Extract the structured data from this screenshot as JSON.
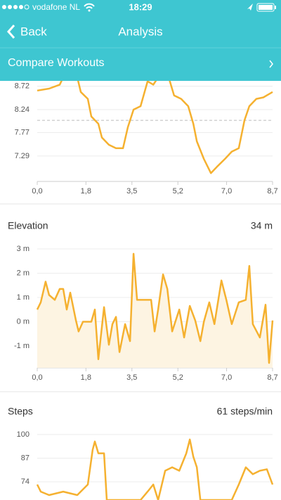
{
  "status_bar": {
    "carrier": "vodafone NL",
    "time": "18:29"
  },
  "nav": {
    "back": "Back",
    "title": "Analysis",
    "section": "Compare Workouts"
  },
  "chart_data": [
    {
      "type": "line",
      "color": "#f5b130",
      "grid": true,
      "x": [
        0,
        0.44,
        0.83,
        0.96,
        1.48,
        1.61,
        1.87,
        2.0,
        2.26,
        2.39,
        2.65,
        2.91,
        3.17,
        3.35,
        3.56,
        3.82,
        4.08,
        4.29,
        4.47,
        4.86,
        5.06,
        5.32,
        5.58,
        5.77,
        5.9,
        6.16,
        6.42,
        6.68,
        6.94,
        7.19,
        7.45,
        7.66,
        7.84,
        8.1,
        8.36,
        8.7
      ],
      "values": [
        8.63,
        8.67,
        8.75,
        8.9,
        8.9,
        8.6,
        8.46,
        8.1,
        7.95,
        7.67,
        7.52,
        7.45,
        7.45,
        7.88,
        8.24,
        8.31,
        8.82,
        8.75,
        8.9,
        8.9,
        8.53,
        8.46,
        8.31,
        7.95,
        7.59,
        7.23,
        6.94,
        7.09,
        7.23,
        7.38,
        7.45,
        8.02,
        8.31,
        8.46,
        8.49,
        8.6
      ],
      "reference_line": 8.02,
      "xlim": [
        0,
        8.7
      ],
      "ylim": [
        6.77,
        8.9
      ],
      "xticks": [
        {
          "value": 0,
          "label": "0,0"
        },
        {
          "value": 1.8,
          "label": "1,8"
        },
        {
          "value": 3.5,
          "label": "3,5"
        },
        {
          "value": 5.2,
          "label": "5,2"
        },
        {
          "value": 7.0,
          "label": "7,0"
        },
        {
          "value": 8.7,
          "label": "8,7"
        }
      ],
      "yticks": [
        8.72,
        8.24,
        7.77,
        7.29
      ]
    },
    {
      "type": "line",
      "title": "Elevation",
      "summary": "34 m",
      "color": "#f5b130",
      "fill": "#fdf4e2",
      "grid": true,
      "x": [
        0,
        0.13,
        0.31,
        0.44,
        0.65,
        0.83,
        0.96,
        1.09,
        1.22,
        1.43,
        1.53,
        1.69,
        2.0,
        2.13,
        2.26,
        2.47,
        2.65,
        2.78,
        2.91,
        3.04,
        3.25,
        3.43,
        3.56,
        3.69,
        4.21,
        4.34,
        4.47,
        4.65,
        4.81,
        4.99,
        5.25,
        5.43,
        5.64,
        5.84,
        6.03,
        6.16,
        6.36,
        6.55,
        6.81,
        6.99,
        7.19,
        7.45,
        7.71,
        7.84,
        7.97,
        8.23,
        8.44,
        8.57,
        8.7
      ],
      "values": [
        0.5,
        0.8,
        1.65,
        1.1,
        0.9,
        1.35,
        1.35,
        0.5,
        1.2,
        0.05,
        -0.4,
        0,
        0,
        0.5,
        -1.55,
        0.6,
        -0.95,
        -0.1,
        0.2,
        -1.25,
        -0.1,
        -0.8,
        2.8,
        0.9,
        0.9,
        -0.4,
        0.5,
        1.95,
        1.35,
        -0.4,
        0.5,
        -0.65,
        0.65,
        0.05,
        -0.8,
        0,
        0.8,
        -0.1,
        1.7,
        0.9,
        -0.1,
        0.8,
        0.9,
        2.3,
        -0.1,
        -0.65,
        0.7,
        -1.7,
        0.05
      ],
      "xlim": [
        0,
        8.7
      ],
      "ylim": [
        -1.9,
        3.26
      ],
      "xticks": [
        {
          "value": 0,
          "label": "0,0"
        },
        {
          "value": 1.8,
          "label": "1,8"
        },
        {
          "value": 3.5,
          "label": "3,5"
        },
        {
          "value": 5.2,
          "label": "5,2"
        },
        {
          "value": 7.0,
          "label": "7,0"
        },
        {
          "value": 8.7,
          "label": "8,7"
        }
      ],
      "yticks": [
        {
          "value": 3,
          "label": "3 m"
        },
        {
          "value": 2,
          "label": "2 m"
        },
        {
          "value": 1,
          "label": "1 m"
        },
        {
          "value": 0,
          "label": "0 m"
        },
        {
          "value": -1,
          "label": "-1 m"
        }
      ]
    },
    {
      "type": "line",
      "title": "Steps",
      "summary": "61 steps/min",
      "color": "#f5b130",
      "grid": true,
      "x": [
        0,
        0.13,
        0.44,
        0.96,
        1.48,
        1.87,
        2.05,
        2.13,
        2.26,
        2.47,
        2.57,
        3.82,
        4.08,
        4.29,
        4.47,
        4.73,
        4.99,
        5.25,
        5.51,
        5.64,
        5.77,
        5.9,
        6.03,
        7.19,
        7.45,
        7.71,
        7.97,
        8.23,
        8.49,
        8.7
      ],
      "values": [
        72.5,
        68.6,
        66.7,
        68.6,
        66.7,
        72.5,
        91.6,
        96.2,
        89.7,
        89.7,
        64,
        64,
        68.6,
        72.5,
        64,
        80.1,
        82,
        80.1,
        89.7,
        97.3,
        87.8,
        82,
        64,
        64,
        72.5,
        82,
        78.2,
        80.1,
        80.9,
        72.5
      ],
      "xlim": [
        0,
        8.7
      ],
      "ylim": [
        64,
        105
      ],
      "yticks": [
        100,
        87,
        74
      ]
    }
  ]
}
